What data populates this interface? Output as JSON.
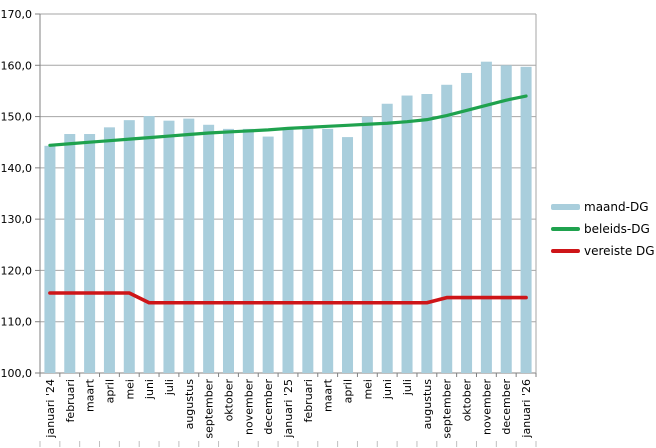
{
  "chart_data": {
    "type": "bar",
    "title": "",
    "xlabel": "",
    "ylabel": "",
    "ylim": [
      100,
      170
    ],
    "y_tick_step": 10,
    "y_tick_labels": [
      "100,0",
      "110,0",
      "120,0",
      "130,0",
      "140,0",
      "150,0",
      "160,0",
      "170,0"
    ],
    "grid": true,
    "legend_position": "right",
    "categories": [
      "januari '24",
      "februari",
      "maart",
      "april",
      "mei",
      "juni",
      "juli",
      "augustus",
      "september",
      "oktober",
      "november",
      "december",
      "januari '25",
      "februari",
      "maart",
      "april",
      "mei",
      "juni",
      "juli",
      "augustus",
      "september",
      "oktober",
      "november",
      "december",
      "januari '26"
    ],
    "series": [
      {
        "name": "maand-DG",
        "type": "bar",
        "color": "#A9CEDC",
        "values": [
          144.3,
          146.6,
          146.6,
          147.9,
          149.3,
          150.1,
          149.2,
          149.6,
          148.4,
          147.6,
          147.6,
          146.1,
          147.8,
          148.1,
          147.6,
          146.0,
          150.0,
          152.5,
          154.1,
          154.4,
          156.2,
          158.5,
          160.7,
          160.0,
          159.7
        ]
      },
      {
        "name": "beleids-DG",
        "type": "line",
        "color": "#1FA24E",
        "values": [
          144.4,
          144.7,
          145.0,
          145.3,
          145.6,
          145.9,
          146.2,
          146.5,
          146.8,
          147.0,
          147.2,
          147.4,
          147.7,
          147.9,
          148.1,
          148.3,
          148.5,
          148.7,
          149.0,
          149.4,
          150.2,
          151.2,
          152.2,
          153.2,
          154.0
        ]
      },
      {
        "name": "vereiste DG",
        "type": "line",
        "color": "#CE1518",
        "values": [
          115.6,
          115.6,
          115.6,
          115.6,
          115.6,
          113.7,
          113.7,
          113.7,
          113.7,
          113.7,
          113.7,
          113.7,
          113.7,
          113.7,
          113.7,
          113.7,
          113.7,
          113.7,
          113.7,
          113.7,
          114.7,
          114.7,
          114.7,
          114.7,
          114.7
        ]
      }
    ]
  },
  "colors": {
    "bar": "#A9CEDC",
    "beleids_line": "#1FA24E",
    "vereiste_line": "#CE1518",
    "gridline": "#A6A6A6",
    "axis": "#808080",
    "tick_minor": "#BFBFBF",
    "text": "#000000",
    "background": "#FFFFFF"
  },
  "legend": {
    "items": [
      {
        "label": "maand-DG"
      },
      {
        "label": "beleids-DG"
      },
      {
        "label": "vereiste DG"
      }
    ]
  }
}
